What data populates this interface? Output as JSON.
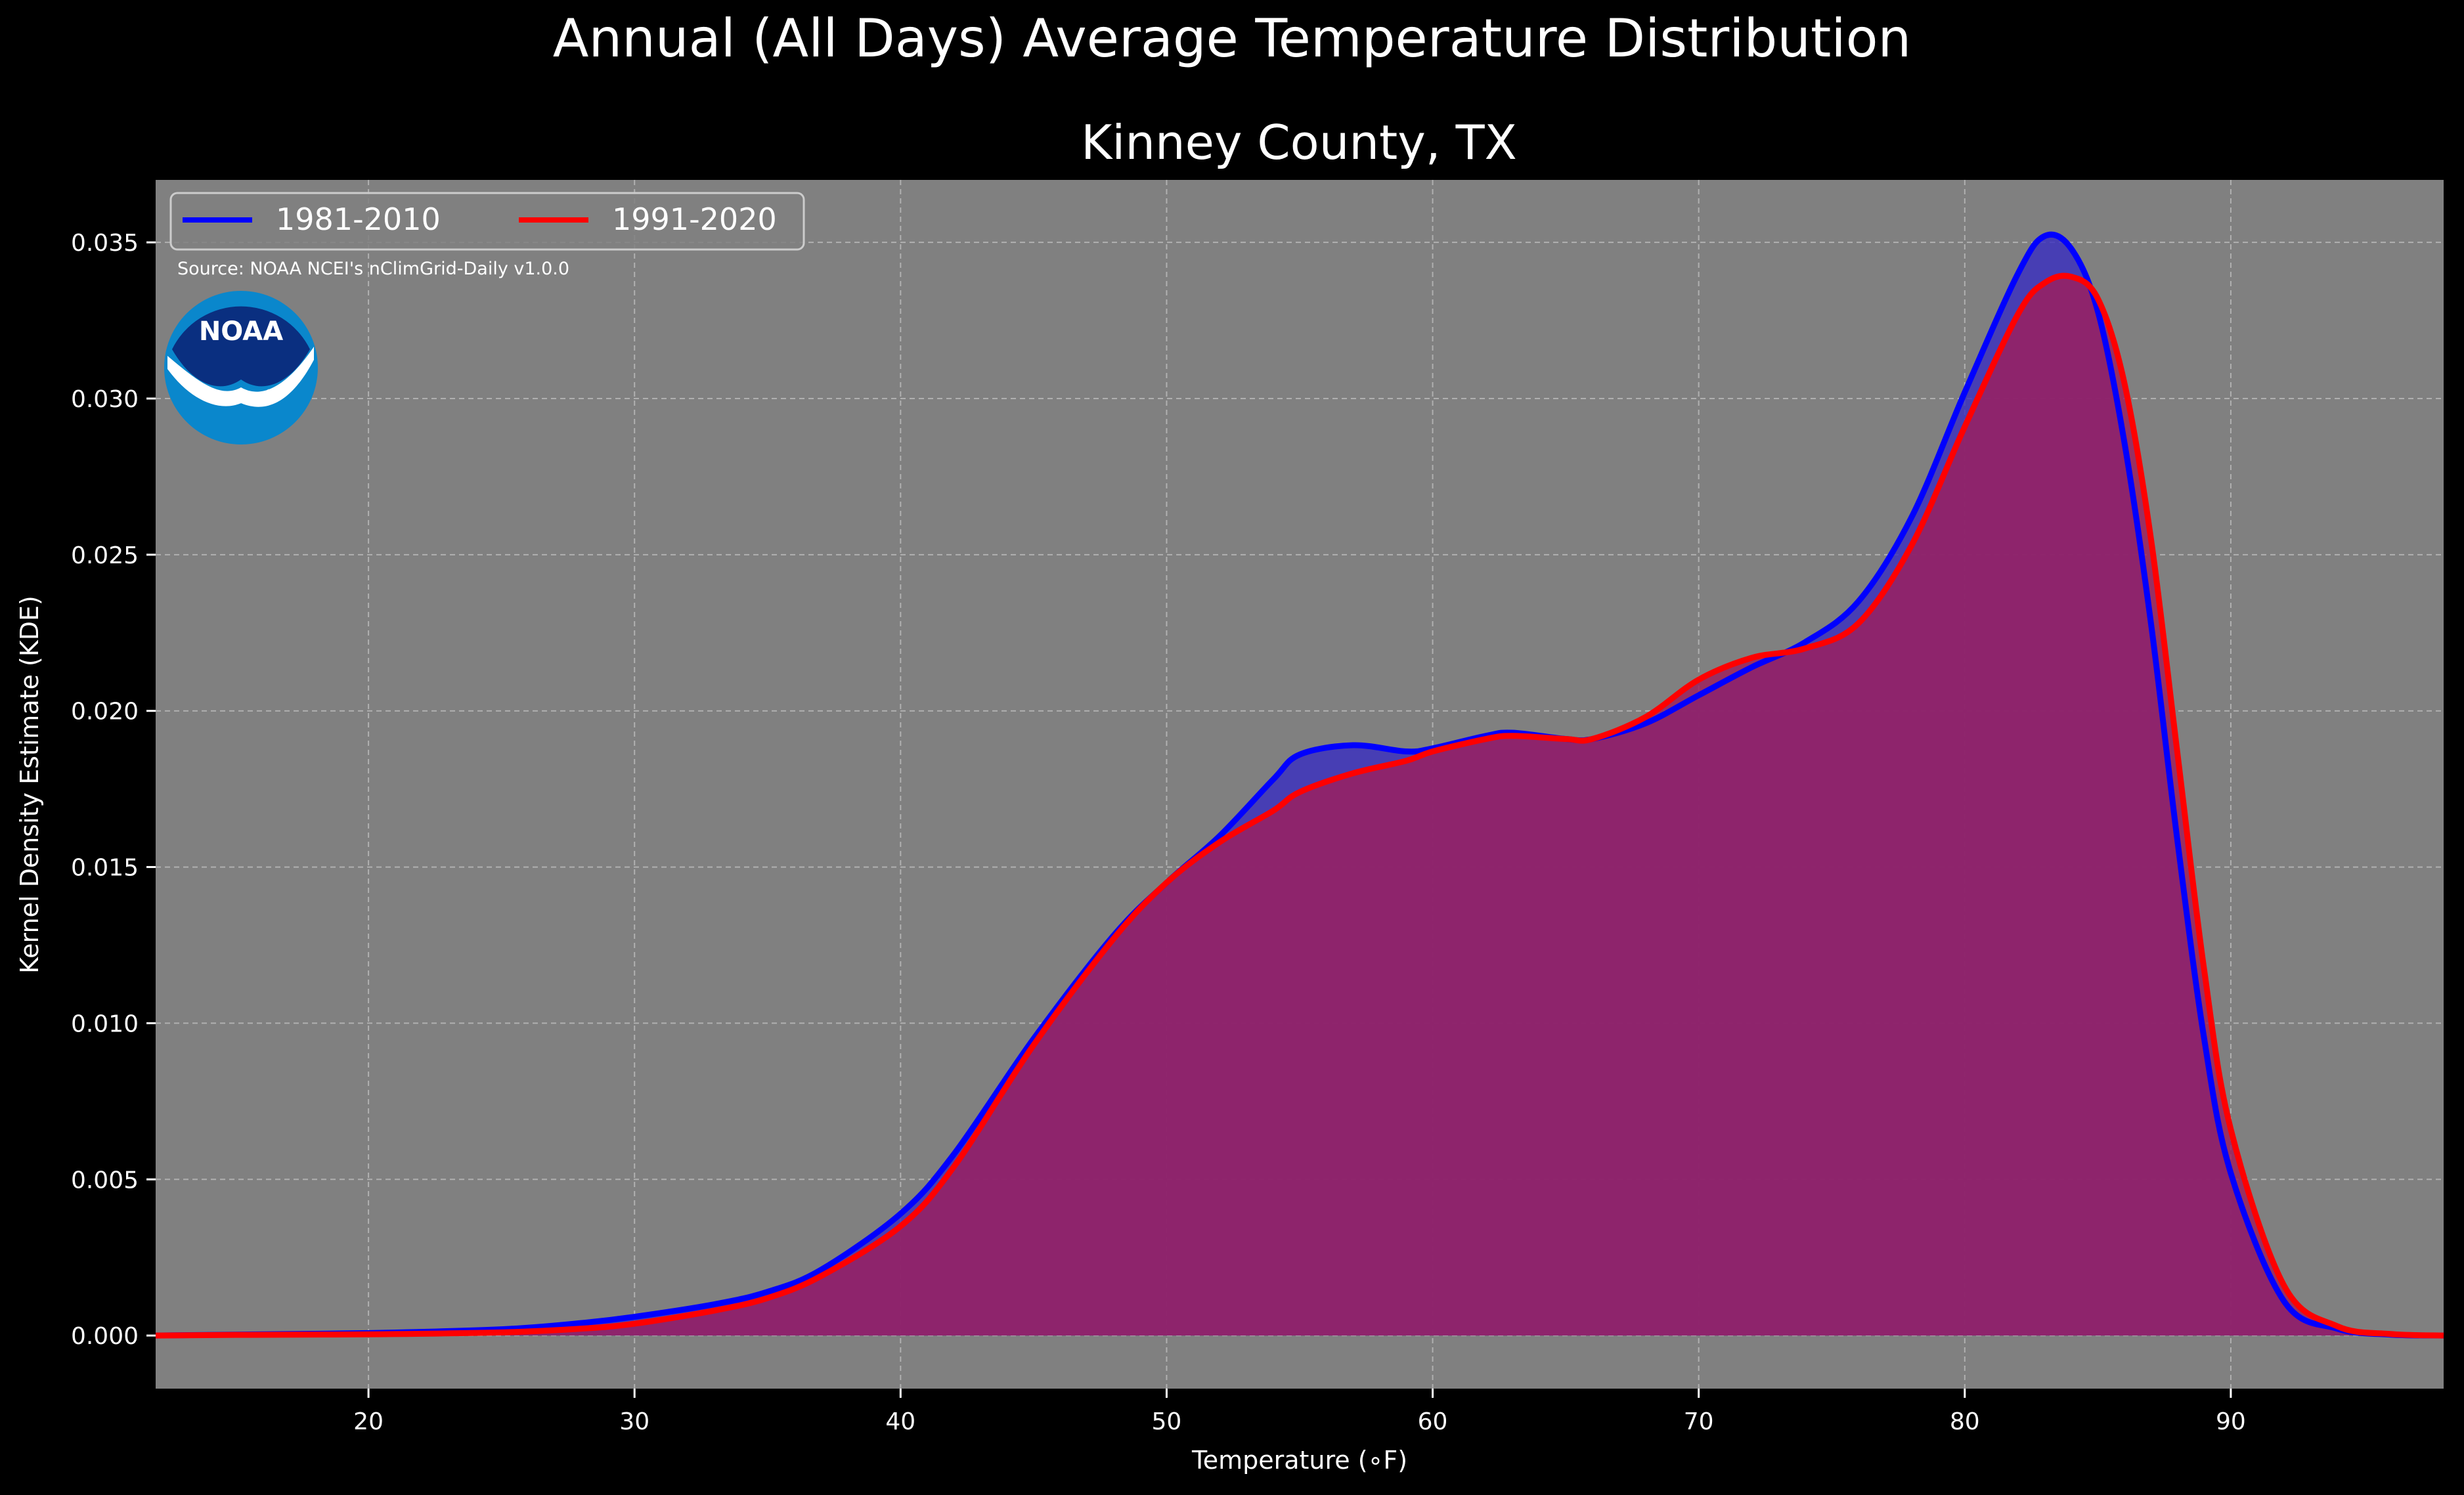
{
  "chart_data": {
    "type": "area",
    "title": "Annual (All Days) Average Temperature Distribution",
    "subtitle": "Kinney County, TX",
    "xlabel": "Temperature (∘F)",
    "ylabel": "Kernel Density Estimate (KDE)",
    "xlim": [
      12,
      98
    ],
    "ylim": [
      -0.0017,
      0.037
    ],
    "xticks": [
      20,
      30,
      40,
      50,
      60,
      70,
      80,
      90
    ],
    "yticks": [
      0.0,
      0.005,
      0.01,
      0.015,
      0.02,
      0.025,
      0.03,
      0.035
    ],
    "ytick_labels": [
      "0.000",
      "0.005",
      "0.010",
      "0.015",
      "0.020",
      "0.025",
      "0.030",
      "0.035"
    ],
    "grid": true,
    "legend_position": "top-left",
    "source_note": "Source: NOAA NCEI's nClimGrid-Daily v1.0.0",
    "logo_text": "NOAA",
    "series": [
      {
        "name": "1981-2010",
        "color": "#0000ff",
        "fill": "#3a2fbf",
        "x": [
          12,
          15,
          20,
          25,
          28,
          30,
          33,
          35,
          37,
          40,
          42,
          45,
          48,
          50,
          52,
          54,
          55,
          57,
          59,
          60,
          62,
          63,
          65,
          66,
          68,
          70,
          72,
          74,
          76,
          78,
          80,
          82,
          83,
          84,
          85,
          86,
          87,
          88,
          89,
          90,
          92,
          94,
          96,
          98
        ],
        "y": [
          0.0,
          3e-05,
          8e-05,
          0.0002,
          0.0004,
          0.0006,
          0.001,
          0.0014,
          0.0021,
          0.0039,
          0.0058,
          0.0095,
          0.0128,
          0.0145,
          0.016,
          0.0178,
          0.0186,
          0.0189,
          0.0187,
          0.0188,
          0.0192,
          0.0193,
          0.0191,
          0.0191,
          0.0196,
          0.0205,
          0.0214,
          0.0222,
          0.0235,
          0.0262,
          0.0302,
          0.034,
          0.0352,
          0.0348,
          0.0328,
          0.0286,
          0.0228,
          0.0158,
          0.0095,
          0.0052,
          0.0011,
          0.00022,
          3e-05,
          0.0
        ]
      },
      {
        "name": "1991-2020",
        "color": "#ff0000",
        "fill": "#9e1e5c",
        "x": [
          12,
          15,
          20,
          25,
          28,
          30,
          33,
          35,
          37,
          40,
          42,
          45,
          48,
          50,
          52,
          54,
          55,
          57,
          59,
          60,
          62,
          63,
          65,
          66,
          68,
          70,
          72,
          74,
          76,
          78,
          80,
          82,
          83,
          84,
          85,
          86,
          87,
          88,
          89,
          90,
          92,
          94,
          96,
          98
        ],
        "y": [
          0.0,
          2e-05,
          4e-05,
          0.0001,
          0.00022,
          0.00038,
          0.0008,
          0.0012,
          0.0019,
          0.0035,
          0.0054,
          0.0093,
          0.0127,
          0.0145,
          0.0158,
          0.0168,
          0.0174,
          0.018,
          0.0184,
          0.0187,
          0.0191,
          0.0192,
          0.0191,
          0.0191,
          0.0198,
          0.021,
          0.0217,
          0.022,
          0.0228,
          0.0253,
          0.0291,
          0.0327,
          0.0337,
          0.0339,
          0.0332,
          0.0305,
          0.0255,
          0.0186,
          0.0117,
          0.0066,
          0.0016,
          0.0003,
          5e-05,
          0.0
        ]
      }
    ]
  }
}
